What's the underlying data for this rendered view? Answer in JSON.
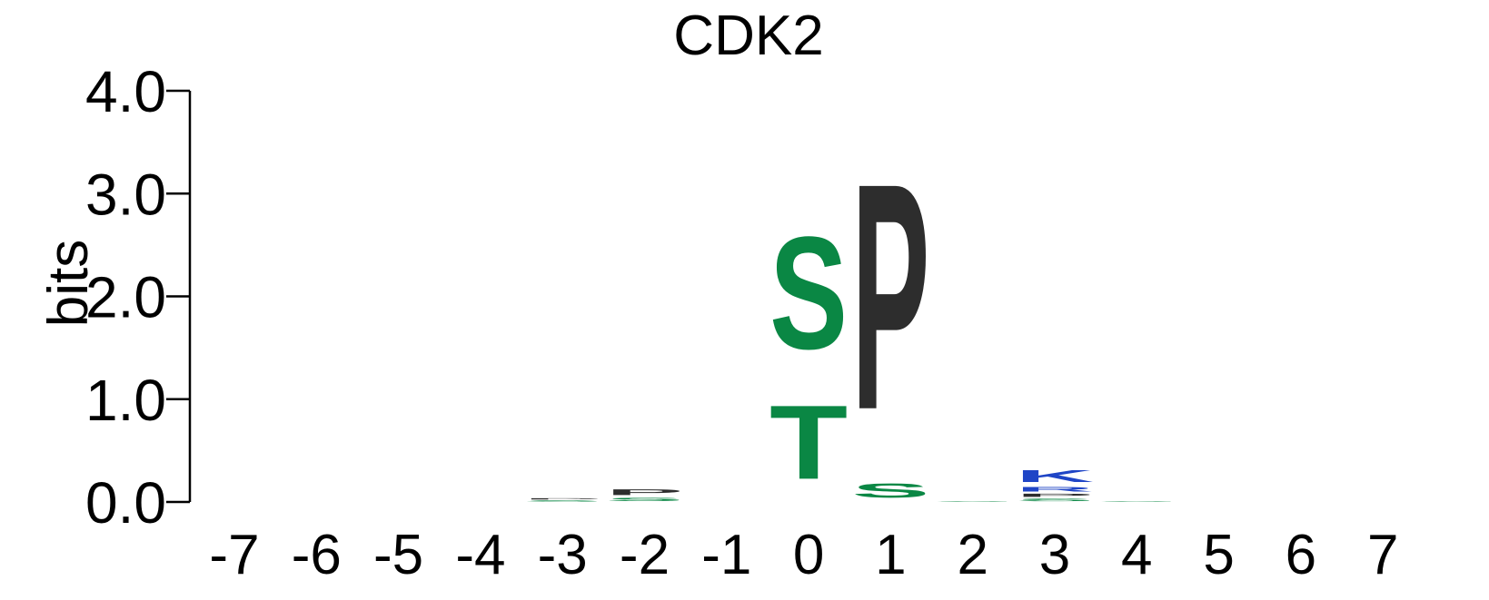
{
  "chart_data": {
    "type": "sequence_logo",
    "title": "CDK2",
    "ylabel": "bits",
    "ylim": [
      0,
      4
    ],
    "y_ticks": [
      "0.0",
      "1.0",
      "2.0",
      "3.0",
      "4.0"
    ],
    "y_tick_values": [
      0,
      1,
      2,
      3,
      4
    ],
    "positions": [
      "-7",
      "-6",
      "-5",
      "-4",
      "-3",
      "-2",
      "-1",
      "0",
      "1",
      "2",
      "3",
      "4",
      "5",
      "6",
      "7"
    ],
    "colors": {
      "P": "#2d2d2d",
      "S": "#0a8744",
      "T": "#0a8744",
      "K": "#1f45c6",
      "R": "#1f45c6",
      "G": "#0a8744"
    },
    "columns": [
      {
        "position": "-7",
        "letters": []
      },
      {
        "position": "-6",
        "letters": []
      },
      {
        "position": "-5",
        "letters": []
      },
      {
        "position": "-4",
        "letters": []
      },
      {
        "position": "-3",
        "letters": [
          {
            "char": "S",
            "bits": 0.02
          },
          {
            "char": "P",
            "bits": 0.02
          }
        ]
      },
      {
        "position": "-2",
        "letters": [
          {
            "char": "S",
            "bits": 0.05
          },
          {
            "char": "P",
            "bits": 0.09
          }
        ]
      },
      {
        "position": "-1",
        "letters": []
      },
      {
        "position": "0",
        "letters": [
          {
            "char": "T",
            "bits": 1.15
          },
          {
            "char": "S",
            "bits": 1.75
          }
        ]
      },
      {
        "position": "1",
        "letters": [
          {
            "char": "S",
            "bits": 0.22
          },
          {
            "char": "P",
            "bits": 3.52
          }
        ]
      },
      {
        "position": "2",
        "letters": [
          {
            "char": "S",
            "bits": 0.01
          }
        ]
      },
      {
        "position": "3",
        "letters": [
          {
            "char": "S",
            "bits": 0.04
          },
          {
            "char": "P",
            "bits": 0.05
          },
          {
            "char": "R",
            "bits": 0.07
          },
          {
            "char": "K",
            "bits": 0.18
          }
        ]
      },
      {
        "position": "4",
        "letters": [
          {
            "char": "S",
            "bits": 0.01
          }
        ]
      },
      {
        "position": "5",
        "letters": []
      },
      {
        "position": "6",
        "letters": []
      },
      {
        "position": "7",
        "letters": []
      }
    ]
  }
}
